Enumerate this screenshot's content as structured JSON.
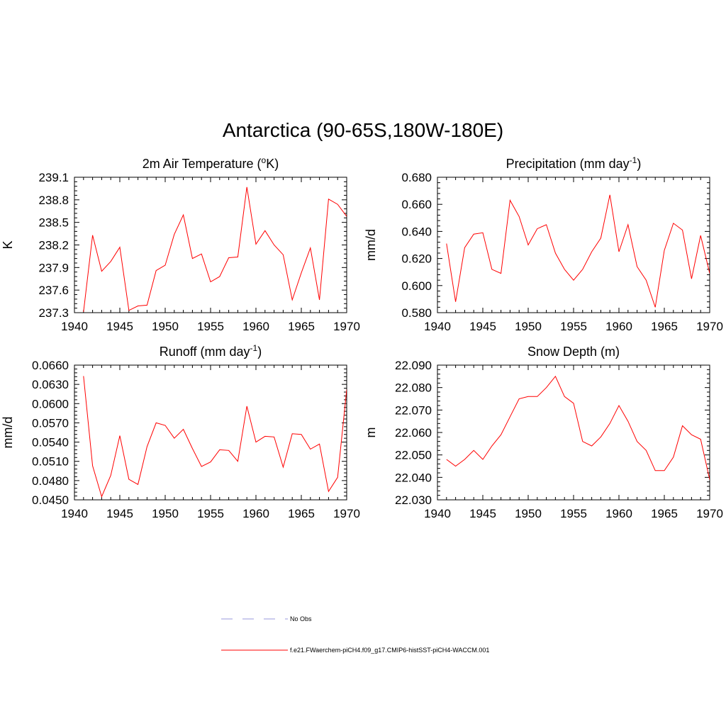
{
  "figure": {
    "title": "Antarctica (90-65S,180W-180E)"
  },
  "colors": {
    "series": "#ff0000",
    "obs": "#9999dd",
    "axis": "#000000"
  },
  "legend": {
    "entries": [
      {
        "label": "No Obs",
        "style": "dashed",
        "color": "#9999dd"
      },
      {
        "label": "f.e21.FWaerchem-piCH4.f09_g17.CMIP6-histSST-piCH4-WACCM.001",
        "style": "solid",
        "color": "#ff0000"
      }
    ]
  },
  "chart_data": [
    {
      "type": "line",
      "title_main": "2m Air Temperature (",
      "title_sup": "o",
      "title_tail": "K)",
      "ylabel": "K",
      "xlim": [
        1940,
        1970
      ],
      "ylim": [
        237.3,
        239.1
      ],
      "xticks": [
        "1940",
        "1945",
        "1950",
        "1955",
        "1960",
        "1965",
        "1970"
      ],
      "yticks": [
        "237.3",
        "237.6",
        "237.9",
        "238.2",
        "238.5",
        "238.8",
        "239.1"
      ],
      "x": [
        1941,
        1942,
        1943,
        1944,
        1945,
        1946,
        1947,
        1948,
        1949,
        1950,
        1951,
        1952,
        1953,
        1954,
        1955,
        1956,
        1957,
        1958,
        1959,
        1960,
        1961,
        1962,
        1963,
        1964,
        1965,
        1966,
        1967,
        1968,
        1969,
        1970
      ],
      "series": [
        {
          "values": [
            237.31,
            238.33,
            237.85,
            237.98,
            238.17,
            237.33,
            237.39,
            237.4,
            237.86,
            237.93,
            238.34,
            238.6,
            238.02,
            238.08,
            237.71,
            237.78,
            238.03,
            238.04,
            238.97,
            238.21,
            238.39,
            238.2,
            238.07,
            237.47,
            237.83,
            238.16,
            237.47,
            238.81,
            238.74,
            238.58
          ]
        }
      ]
    },
    {
      "type": "line",
      "title_main": "Precipitation (mm day",
      "title_sup": "-1",
      "title_tail": ")",
      "ylabel": "mm/d",
      "xlim": [
        1940,
        1970
      ],
      "ylim": [
        0.58,
        0.68
      ],
      "xticks": [
        "1940",
        "1945",
        "1950",
        "1955",
        "1960",
        "1965",
        "1970"
      ],
      "yticks": [
        "0.580",
        "0.600",
        "0.620",
        "0.640",
        "0.660",
        "0.680"
      ],
      "x": [
        1941,
        1942,
        1943,
        1944,
        1945,
        1946,
        1947,
        1948,
        1949,
        1950,
        1951,
        1952,
        1953,
        1954,
        1955,
        1956,
        1957,
        1958,
        1959,
        1960,
        1961,
        1962,
        1963,
        1964,
        1965,
        1966,
        1967,
        1968,
        1969,
        1970
      ],
      "series": [
        {
          "values": [
            0.631,
            0.588,
            0.628,
            0.638,
            0.639,
            0.612,
            0.609,
            0.663,
            0.651,
            0.63,
            0.642,
            0.645,
            0.624,
            0.612,
            0.604,
            0.612,
            0.625,
            0.635,
            0.667,
            0.625,
            0.645,
            0.614,
            0.604,
            0.584,
            0.626,
            0.646,
            0.641,
            0.605,
            0.637,
            0.609
          ]
        }
      ]
    },
    {
      "type": "line",
      "title_main": "Runoff (mm day",
      "title_sup": "-1",
      "title_tail": ")",
      "ylabel": "mm/d",
      "xlim": [
        1940,
        1970
      ],
      "ylim": [
        0.045,
        0.066
      ],
      "xticks": [
        "1940",
        "1945",
        "1950",
        "1955",
        "1960",
        "1965",
        "1970"
      ],
      "yticks": [
        "0.0450",
        "0.0480",
        "0.0510",
        "0.0540",
        "0.0570",
        "0.0600",
        "0.0630",
        "0.0660"
      ],
      "x": [
        1941,
        1942,
        1943,
        1944,
        1945,
        1946,
        1947,
        1948,
        1949,
        1950,
        1951,
        1952,
        1953,
        1954,
        1955,
        1956,
        1957,
        1958,
        1959,
        1960,
        1961,
        1962,
        1963,
        1964,
        1965,
        1966,
        1967,
        1968,
        1969,
        1970
      ],
      "series": [
        {
          "values": [
            0.0643,
            0.0503,
            0.0455,
            0.0488,
            0.055,
            0.0482,
            0.0474,
            0.0533,
            0.057,
            0.0566,
            0.0546,
            0.056,
            0.053,
            0.0502,
            0.0509,
            0.0528,
            0.0527,
            0.051,
            0.0596,
            0.054,
            0.0549,
            0.0548,
            0.0501,
            0.0553,
            0.0552,
            0.0529,
            0.0537,
            0.0463,
            0.0485,
            0.0622
          ]
        }
      ]
    },
    {
      "type": "line",
      "title_main": "Snow Depth (m)",
      "title_sup": "",
      "title_tail": "",
      "ylabel": "m",
      "xlim": [
        1940,
        1970
      ],
      "ylim": [
        22.03,
        22.09
      ],
      "xticks": [
        "1940",
        "1945",
        "1950",
        "1955",
        "1960",
        "1965",
        "1970"
      ],
      "yticks": [
        "22.030",
        "22.040",
        "22.050",
        "22.060",
        "22.070",
        "22.080",
        "22.090"
      ],
      "x": [
        1941,
        1942,
        1943,
        1944,
        1945,
        1946,
        1947,
        1948,
        1949,
        1950,
        1951,
        1952,
        1953,
        1954,
        1955,
        1956,
        1957,
        1958,
        1959,
        1960,
        1961,
        1962,
        1963,
        1964,
        1965,
        1966,
        1967,
        1968,
        1969,
        1970
      ],
      "series": [
        {
          "values": [
            22.048,
            22.045,
            22.048,
            22.052,
            22.048,
            22.054,
            22.059,
            22.067,
            22.075,
            22.076,
            22.076,
            22.08,
            22.085,
            22.076,
            22.073,
            22.056,
            22.054,
            22.058,
            22.064,
            22.072,
            22.065,
            22.056,
            22.052,
            22.043,
            22.043,
            22.049,
            22.063,
            22.059,
            22.057,
            22.039
          ]
        }
      ]
    }
  ]
}
